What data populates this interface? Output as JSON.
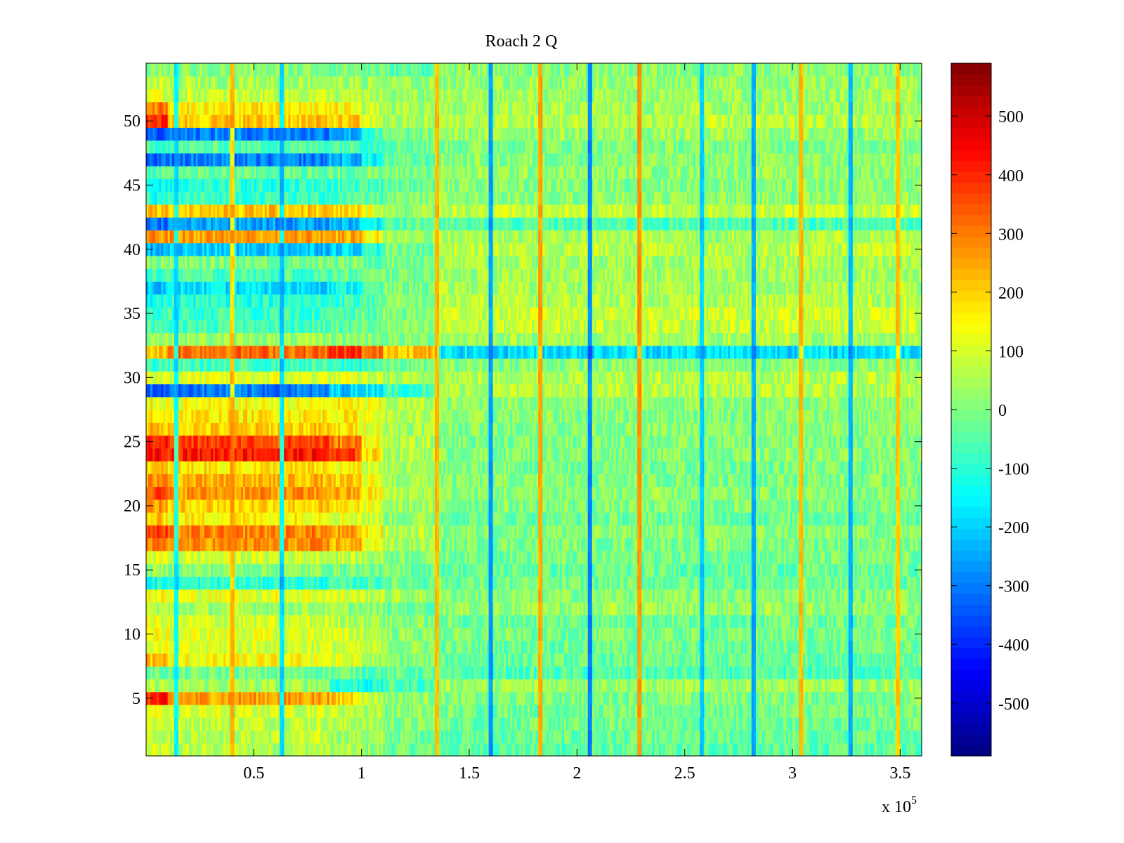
{
  "chart_data": {
    "type": "heatmap",
    "title": "Roach 2 Q",
    "xlabel": "",
    "ylabel": "",
    "x_multiplier_label": "x 10",
    "x_multiplier_exponent": "5",
    "xlim": [
      0,
      360000
    ],
    "ylim": [
      0.5,
      54.5
    ],
    "x_ticks": [
      0.5,
      1,
      1.5,
      2,
      2.5,
      3,
      3.5
    ],
    "x_tick_labels": [
      "0.5",
      "1",
      "1.5",
      "2",
      "2.5",
      "3",
      "3.5"
    ],
    "y_ticks": [
      5,
      10,
      15,
      20,
      25,
      30,
      35,
      40,
      45,
      50
    ],
    "y_tick_labels": [
      "5",
      "10",
      "15",
      "20",
      "25",
      "30",
      "35",
      "40",
      "45",
      "50"
    ],
    "rows": 54,
    "x_block_boundaries": [
      10000,
      85000,
      100000,
      110000,
      135000,
      360000
    ],
    "row_levels_by_block": [
      {
        "row": 1,
        "levels": [
          80,
          60,
          40,
          20,
          -20,
          -40
        ]
      },
      {
        "row": 2,
        "levels": [
          90,
          70,
          50,
          30,
          -10,
          -30
        ]
      },
      {
        "row": 3,
        "levels": [
          100,
          80,
          60,
          40,
          0,
          -20
        ]
      },
      {
        "row": 4,
        "levels": [
          120,
          100,
          80,
          60,
          10,
          -10
        ]
      },
      {
        "row": 5,
        "levels": [
          400,
          260,
          200,
          80,
          20,
          0
        ]
      },
      {
        "row": 6,
        "levels": [
          60,
          40,
          -100,
          -120,
          -60,
          40
        ]
      },
      {
        "row": 7,
        "levels": [
          -20,
          -20,
          -20,
          -40,
          -40,
          -60
        ]
      },
      {
        "row": 8,
        "levels": [
          230,
          140,
          100,
          40,
          0,
          -30
        ]
      },
      {
        "row": 9,
        "levels": [
          120,
          100,
          80,
          60,
          20,
          -20
        ]
      },
      {
        "row": 10,
        "levels": [
          130,
          110,
          90,
          70,
          20,
          -10
        ]
      },
      {
        "row": 11,
        "levels": [
          110,
          90,
          70,
          50,
          10,
          -20
        ]
      },
      {
        "row": 12,
        "levels": [
          60,
          40,
          20,
          0,
          -20,
          30
        ]
      },
      {
        "row": 13,
        "levels": [
          140,
          120,
          100,
          80,
          40,
          10
        ]
      },
      {
        "row": 14,
        "levels": [
          -120,
          -100,
          -80,
          -60,
          -20,
          -20
        ]
      },
      {
        "row": 15,
        "levels": [
          20,
          10,
          0,
          -10,
          -20,
          -30
        ]
      },
      {
        "row": 16,
        "levels": [
          110,
          90,
          70,
          50,
          10,
          -10
        ]
      },
      {
        "row": 17,
        "levels": [
          280,
          270,
          230,
          140,
          40,
          0
        ]
      },
      {
        "row": 18,
        "levels": [
          360,
          290,
          240,
          150,
          60,
          10
        ]
      },
      {
        "row": 19,
        "levels": [
          200,
          160,
          120,
          80,
          20,
          -20
        ]
      },
      {
        "row": 20,
        "levels": [
          260,
          200,
          160,
          110,
          30,
          0
        ]
      },
      {
        "row": 21,
        "levels": [
          360,
          270,
          240,
          160,
          60,
          10
        ]
      },
      {
        "row": 22,
        "levels": [
          280,
          230,
          190,
          130,
          40,
          0
        ]
      },
      {
        "row": 23,
        "levels": [
          200,
          170,
          140,
          100,
          30,
          -10
        ]
      },
      {
        "row": 24,
        "levels": [
          450,
          420,
          360,
          180,
          60,
          10
        ]
      },
      {
        "row": 25,
        "levels": [
          420,
          370,
          300,
          160,
          50,
          0
        ]
      },
      {
        "row": 26,
        "levels": [
          220,
          200,
          170,
          130,
          50,
          10
        ]
      },
      {
        "row": 27,
        "levels": [
          180,
          170,
          160,
          140,
          60,
          10
        ]
      },
      {
        "row": 28,
        "levels": [
          140,
          130,
          150,
          120,
          60,
          20
        ]
      },
      {
        "row": 29,
        "levels": [
          -330,
          -300,
          -200,
          -150,
          -80,
          60
        ]
      },
      {
        "row": 30,
        "levels": [
          120,
          110,
          100,
          80,
          40,
          60
        ]
      },
      {
        "row": 31,
        "levels": [
          -80,
          -70,
          -100,
          -60,
          -20,
          10
        ]
      },
      {
        "row": 32,
        "levels": [
          220,
          320,
          380,
          300,
          230,
          -180
        ]
      },
      {
        "row": 33,
        "levels": [
          40,
          30,
          20,
          10,
          0,
          40
        ]
      },
      {
        "row": 34,
        "levels": [
          -40,
          -60,
          -40,
          -20,
          0,
          80
        ]
      },
      {
        "row": 35,
        "levels": [
          -100,
          -80,
          -60,
          -40,
          0,
          90
        ]
      },
      {
        "row": 36,
        "levels": [
          -120,
          -100,
          -80,
          -40,
          0,
          60
        ]
      },
      {
        "row": 37,
        "levels": [
          -200,
          -180,
          -140,
          -60,
          0,
          50
        ]
      },
      {
        "row": 38,
        "levels": [
          -80,
          -60,
          -40,
          -20,
          0,
          40
        ]
      },
      {
        "row": 39,
        "levels": [
          10,
          0,
          -10,
          -20,
          0,
          40
        ]
      },
      {
        "row": 40,
        "levels": [
          -230,
          -210,
          -180,
          -100,
          -20,
          70
        ]
      },
      {
        "row": 41,
        "levels": [
          280,
          260,
          240,
          160,
          40,
          50
        ]
      },
      {
        "row": 42,
        "levels": [
          -300,
          -260,
          -220,
          -140,
          -30,
          -60
        ]
      },
      {
        "row": 43,
        "levels": [
          230,
          210,
          180,
          120,
          30,
          80
        ]
      },
      {
        "row": 44,
        "levels": [
          -110,
          -80,
          -60,
          -40,
          -10,
          20
        ]
      },
      {
        "row": 45,
        "levels": [
          -130,
          -100,
          -80,
          -60,
          -20,
          10
        ]
      },
      {
        "row": 46,
        "levels": [
          -40,
          -30,
          -20,
          -10,
          0,
          20
        ]
      },
      {
        "row": 47,
        "levels": [
          -330,
          -300,
          -230,
          -140,
          -40,
          10
        ]
      },
      {
        "row": 48,
        "levels": [
          -60,
          -50,
          -40,
          -60,
          -20,
          0
        ]
      },
      {
        "row": 49,
        "levels": [
          -350,
          -290,
          -240,
          -90,
          -20,
          30
        ]
      },
      {
        "row": 50,
        "levels": [
          400,
          210,
          200,
          100,
          40,
          60
        ]
      },
      {
        "row": 51,
        "levels": [
          300,
          160,
          150,
          80,
          30,
          40
        ]
      },
      {
        "row": 52,
        "levels": [
          100,
          80,
          60,
          40,
          20,
          30
        ]
      },
      {
        "row": 53,
        "levels": [
          60,
          50,
          40,
          30,
          20,
          30
        ]
      },
      {
        "row": 54,
        "levels": [
          20,
          10,
          0,
          -20,
          -40,
          10
        ]
      }
    ],
    "noise_amplitude": 70,
    "vertical_streaks": [
      {
        "x": 14000,
        "value": -250
      },
      {
        "x": 40000,
        "value": 300
      },
      {
        "x": 63000,
        "value": -300
      },
      {
        "x": 135000,
        "value": 320
      },
      {
        "x": 160000,
        "value": -380
      },
      {
        "x": 183000,
        "value": 350
      },
      {
        "x": 206000,
        "value": -420
      },
      {
        "x": 229000,
        "value": 380
      },
      {
        "x": 258000,
        "value": -300
      },
      {
        "x": 282000,
        "value": -360
      },
      {
        "x": 304000,
        "value": 320
      },
      {
        "x": 327000,
        "value": -340
      },
      {
        "x": 349000,
        "value": 300
      }
    ],
    "colorbar": {
      "colormap": "jet",
      "range": [
        -590,
        590
      ],
      "ticks": [
        -500,
        -400,
        -300,
        -200,
        -100,
        0,
        100,
        200,
        300,
        400,
        500
      ],
      "tick_labels": [
        "-500",
        "-400",
        "-300",
        "-200",
        "-100",
        "0",
        "100",
        "200",
        "300",
        "400",
        "500"
      ]
    }
  }
}
